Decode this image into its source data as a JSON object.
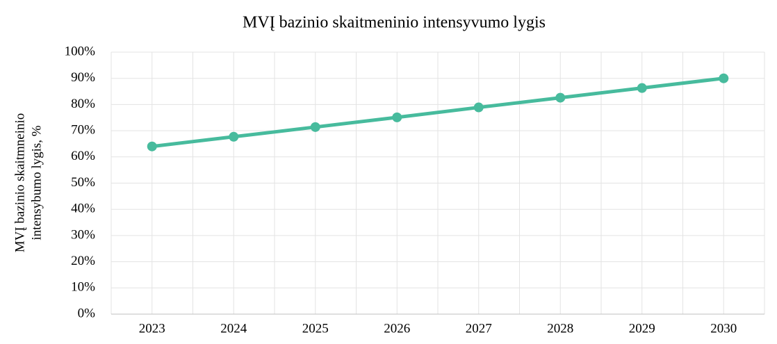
{
  "chart_data": {
    "type": "line",
    "title": "MVĮ bazinio skaitmeninio intensyvumo lygis",
    "ylabel": [
      "MVĮ bazinio skaitmneinio",
      "intensybumo lygis, %"
    ],
    "categories": [
      "2023",
      "2024",
      "2025",
      "2026",
      "2027",
      "2028",
      "2029",
      "2030"
    ],
    "series": [
      {
        "name": "MVĮ bazinio skaitmeninio intensyvumo lygis",
        "color": "#47bb9d",
        "values": [
          64,
          67.7,
          71.4,
          75.1,
          78.9,
          82.6,
          86.3,
          90
        ]
      }
    ],
    "ylim": [
      0,
      100
    ],
    "yticks": [
      {
        "value": 0,
        "label": "0%"
      },
      {
        "value": 10,
        "label": "10%"
      },
      {
        "value": 20,
        "label": "20%"
      },
      {
        "value": 30,
        "label": "30%"
      },
      {
        "value": 40,
        "label": "40%"
      },
      {
        "value": 50,
        "label": "50%"
      },
      {
        "value": 60,
        "label": "60%"
      },
      {
        "value": 70,
        "label": "70%"
      },
      {
        "value": 80,
        "label": "80%"
      },
      {
        "value": 90,
        "label": "90%"
      },
      {
        "value": 100,
        "label": "100%"
      }
    ],
    "grid": true
  }
}
